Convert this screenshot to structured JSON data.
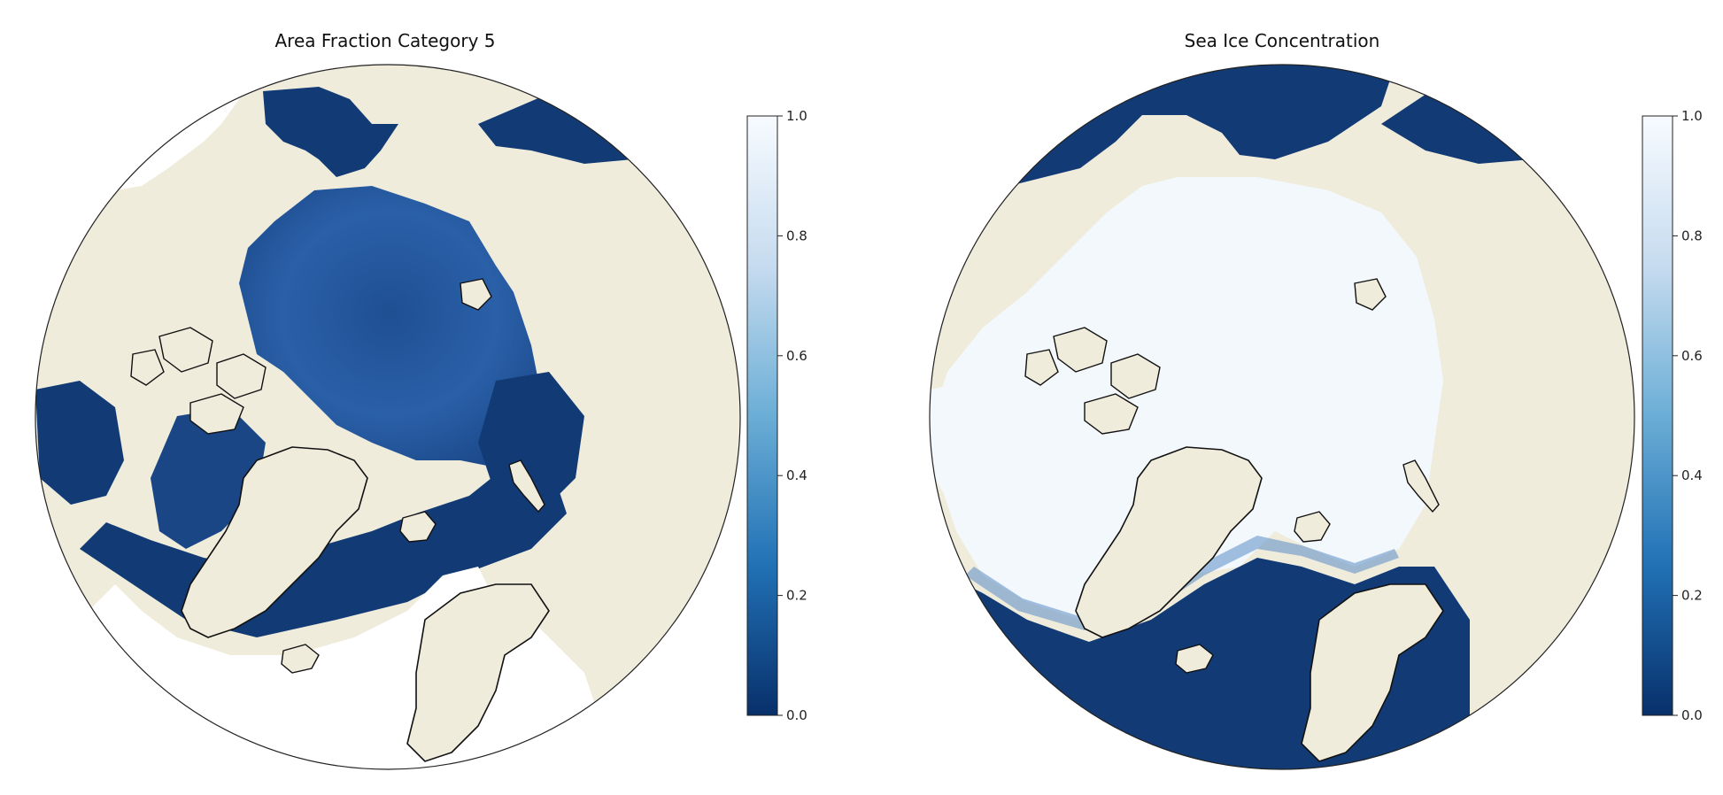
{
  "panels": [
    {
      "title": "Area Fraction Category 5"
    },
    {
      "title": "Sea Ice Concentration"
    }
  ],
  "colorbar": {
    "ticks": [
      "0.0",
      "0.2",
      "0.4",
      "0.6",
      "0.8",
      "1.0"
    ],
    "colormap": [
      "#08306b",
      "#2171b5",
      "#6baed6",
      "#c6dbef",
      "#f7fbff"
    ]
  },
  "colors": {
    "land": "#efecdc",
    "ocean_dark": "#123a75",
    "ocean_mid": "#2a5fa5",
    "ice": "#f3f8fd",
    "coast": "#111111"
  }
}
